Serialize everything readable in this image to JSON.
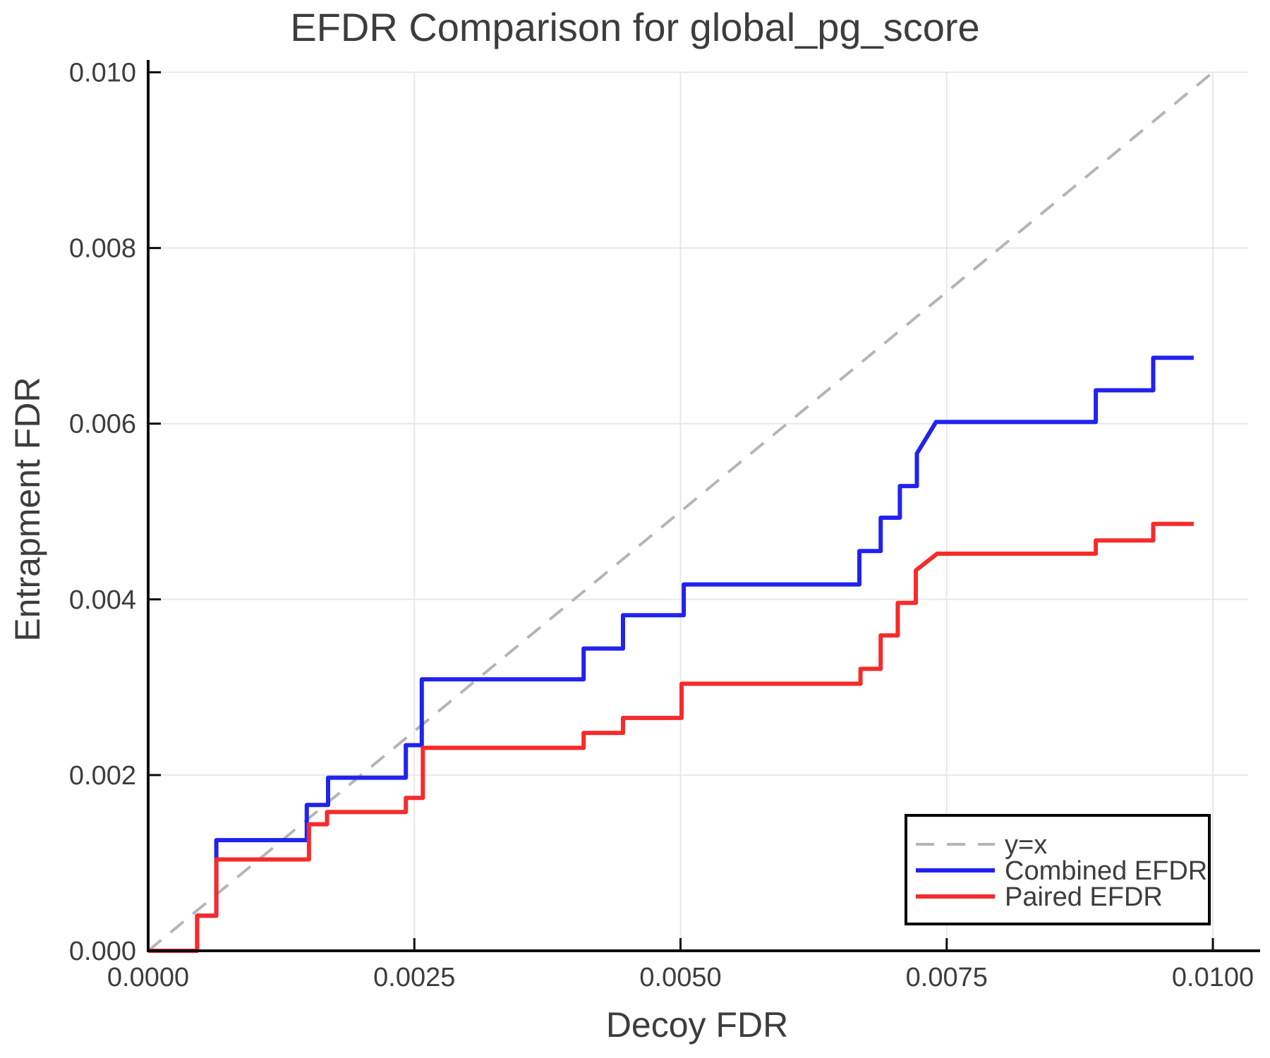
{
  "title": "EFDR Comparison for global_pg_score",
  "colors": {
    "combined_efdr": "#2222ef",
    "paired_efdr": "#f62b2b",
    "identity_line": "#b5b5b5",
    "grid": "#e8e8e8",
    "spine": "#0d0d0d",
    "text": "#3d3d3d",
    "legend_border": "#000000",
    "legend_background": "#ffffff"
  },
  "chart_data": {
    "type": "line",
    "title": "EFDR Comparison for global_pg_score",
    "xlabel": "Decoy FDR",
    "ylabel": "Entrapment FDR",
    "xlim": [
      0,
      0.010331
    ],
    "ylim": [
      0,
      0.01006
    ],
    "grid": true,
    "xticks": {
      "values": [
        0,
        0.0025,
        0.005,
        0.0075,
        0.01
      ],
      "labels": [
        "0.0000",
        "0.0025",
        "0.0050",
        "0.0075",
        "0.0100"
      ]
    },
    "yticks": {
      "values": [
        0,
        0.002,
        0.004,
        0.006,
        0.008,
        0.01
      ],
      "labels": [
        "0.000",
        "0.002",
        "0.004",
        "0.006",
        "0.008",
        "0.010"
      ]
    },
    "legend": {
      "position": "lower right"
    },
    "series": [
      {
        "name": "y=x",
        "key": "identity",
        "style": "dashed",
        "color": "#b5b5b5",
        "width": 4,
        "points": [
          [
            0,
            0
          ],
          [
            0.01,
            0.01
          ]
        ]
      },
      {
        "name": "Combined EFDR",
        "key": "combined-efdr",
        "style": "solid",
        "color": "#2222ef",
        "width": 6,
        "points": [
          [
            0,
            0
          ],
          [
            0.00046,
            0
          ],
          [
            0.00046,
            0.0004
          ],
          [
            0.00064,
            0.0004
          ],
          [
            0.00064,
            0.00126
          ],
          [
            0.00149,
            0.00126
          ],
          [
            0.00149,
            0.00166
          ],
          [
            0.00169,
            0.00166
          ],
          [
            0.00169,
            0.00197
          ],
          [
            0.00242,
            0.00197
          ],
          [
            0.00242,
            0.00234
          ],
          [
            0.00257,
            0.00234
          ],
          [
            0.00257,
            0.00309
          ],
          [
            0.00409,
            0.00309
          ],
          [
            0.00409,
            0.00344
          ],
          [
            0.00446,
            0.00344
          ],
          [
            0.00446,
            0.00382
          ],
          [
            0.00503,
            0.00382
          ],
          [
            0.00503,
            0.00417
          ],
          [
            0.00668,
            0.00417
          ],
          [
            0.00668,
            0.00455
          ],
          [
            0.00688,
            0.00455
          ],
          [
            0.00688,
            0.00493
          ],
          [
            0.00706,
            0.00493
          ],
          [
            0.00706,
            0.00529
          ],
          [
            0.00722,
            0.00529
          ],
          [
            0.00722,
            0.00566
          ],
          [
            0.0074,
            0.00602
          ],
          [
            0.0089,
            0.00602
          ],
          [
            0.0089,
            0.00638
          ],
          [
            0.00944,
            0.00638
          ],
          [
            0.00944,
            0.00675
          ],
          [
            0.00982,
            0.00675
          ]
        ]
      },
      {
        "name": "Paired EFDR",
        "key": "paired-efdr",
        "style": "solid",
        "color": "#f62b2b",
        "width": 6,
        "points": [
          [
            0,
            0
          ],
          [
            0.00046,
            0
          ],
          [
            0.00046,
            0.0004
          ],
          [
            0.00064,
            0.0004
          ],
          [
            0.00064,
            0.00104
          ],
          [
            0.00151,
            0.00104
          ],
          [
            0.00151,
            0.00144
          ],
          [
            0.00168,
            0.00144
          ],
          [
            0.00168,
            0.00158
          ],
          [
            0.00242,
            0.00158
          ],
          [
            0.00242,
            0.00174
          ],
          [
            0.00258,
            0.00174
          ],
          [
            0.00258,
            0.00231
          ],
          [
            0.00409,
            0.00231
          ],
          [
            0.00409,
            0.00248
          ],
          [
            0.00446,
            0.00248
          ],
          [
            0.00446,
            0.00265
          ],
          [
            0.00501,
            0.00265
          ],
          [
            0.00501,
            0.00304
          ],
          [
            0.00669,
            0.00304
          ],
          [
            0.00669,
            0.00321
          ],
          [
            0.00688,
            0.00321
          ],
          [
            0.00688,
            0.00359
          ],
          [
            0.00704,
            0.00359
          ],
          [
            0.00704,
            0.00396
          ],
          [
            0.00721,
            0.00396
          ],
          [
            0.00721,
            0.00433
          ],
          [
            0.00741,
            0.00452
          ],
          [
            0.0089,
            0.00452
          ],
          [
            0.0089,
            0.00467
          ],
          [
            0.00944,
            0.00467
          ],
          [
            0.00944,
            0.00486
          ],
          [
            0.00982,
            0.00486
          ]
        ]
      }
    ]
  }
}
